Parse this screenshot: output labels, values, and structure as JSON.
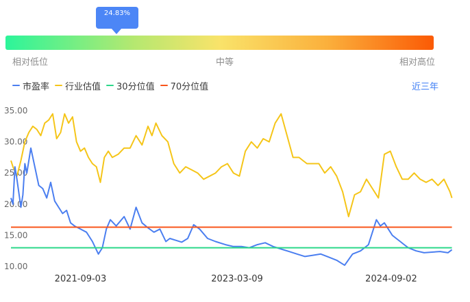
{
  "percentile": {
    "label": "24.83%",
    "value": 24.83,
    "range_labels": {
      "low": "相对低位",
      "mid": "中等",
      "high": "相对高位"
    }
  },
  "legend": [
    {
      "name": "市盈率",
      "color": "#4a7ef0"
    },
    {
      "name": "行业估值",
      "color": "#f5c518"
    },
    {
      "name": "30分位值",
      "color": "#2ad889"
    },
    {
      "name": "70分位值",
      "color": "#f8541a"
    }
  ],
  "period_selector": "近三年",
  "chart_data": {
    "type": "line",
    "ylim": [
      10,
      35
    ],
    "y_ticks": [
      "35.00",
      "30.00",
      "25.00",
      "20.00",
      "15.00",
      "10.00"
    ],
    "x_ticks": [
      "2021-09-03",
      "2023-03-09",
      "2024-09-02"
    ],
    "x_domain": [
      "2021-01-01",
      "2025-04-05"
    ],
    "series": [
      {
        "name": "市盈率",
        "color": "#4a7ef0",
        "x": [
          "2021-01-01",
          "2021-01-08",
          "2021-01-15",
          "2021-01-22",
          "2021-02-05",
          "2021-02-12",
          "2021-02-19",
          "2021-02-26",
          "2021-03-12",
          "2021-03-26",
          "2021-04-09",
          "2021-04-23",
          "2021-05-07",
          "2021-05-21",
          "2021-06-04",
          "2021-06-18",
          "2021-07-02",
          "2021-07-16",
          "2021-07-30",
          "2021-08-13",
          "2021-09-03",
          "2021-09-24",
          "2021-10-15",
          "2021-11-05",
          "2021-11-19",
          "2021-12-03",
          "2021-12-17",
          "2022-01-07",
          "2022-02-04",
          "2022-02-25",
          "2022-03-18",
          "2022-04-08",
          "2022-04-29",
          "2022-05-20",
          "2022-06-10",
          "2022-07-01",
          "2022-07-15",
          "2022-08-05",
          "2022-08-26",
          "2022-09-16",
          "2022-10-07",
          "2022-10-28",
          "2022-11-25",
          "2022-12-23",
          "2023-01-27",
          "2023-02-24",
          "2023-03-24",
          "2023-04-21",
          "2023-05-19",
          "2023-06-16",
          "2023-07-14",
          "2023-08-11",
          "2023-09-08",
          "2023-10-06",
          "2023-11-03",
          "2023-12-01",
          "2023-12-29",
          "2024-01-26",
          "2024-02-23",
          "2024-03-22",
          "2024-04-19",
          "2024-05-17",
          "2024-06-14",
          "2024-07-12",
          "2024-07-26",
          "2024-08-09",
          "2024-08-30",
          "2024-09-06",
          "2024-09-20",
          "2024-10-04",
          "2024-10-18",
          "2024-11-01",
          "2024-11-29",
          "2024-12-27",
          "2025-01-24",
          "2025-02-21",
          "2025-03-21",
          "2025-04-04"
        ],
        "y": [
          21.0,
          20.0,
          26.0,
          24.0,
          19.5,
          21.5,
          26.5,
          25.0,
          29.0,
          26.0,
          23.0,
          22.5,
          21.0,
          23.5,
          20.5,
          19.5,
          18.5,
          19.0,
          17.0,
          16.5,
          16.0,
          15.5,
          14.0,
          12.0,
          13.0,
          16.0,
          17.5,
          16.5,
          18.0,
          16.0,
          19.5,
          17.0,
          16.2,
          15.5,
          16.0,
          14.0,
          14.5,
          14.2,
          13.9,
          14.5,
          16.7,
          16.0,
          14.5,
          14.0,
          13.5,
          13.2,
          13.2,
          13.0,
          13.5,
          13.8,
          13.2,
          12.8,
          12.4,
          12.0,
          11.6,
          11.8,
          12.0,
          11.5,
          11.0,
          10.2,
          12.0,
          12.5,
          13.5,
          17.5,
          16.5,
          17.0,
          15.5,
          15.0,
          14.5,
          14.0,
          13.5,
          13.0,
          12.5,
          12.2,
          12.3,
          12.4,
          12.2,
          12.7
        ]
      },
      {
        "name": "行业估值",
        "color": "#f5c518",
        "x": [
          "2021-01-01",
          "2021-01-08",
          "2021-01-22",
          "2021-02-05",
          "2021-02-19",
          "2021-03-05",
          "2021-03-19",
          "2021-04-02",
          "2021-04-16",
          "2021-04-30",
          "2021-05-14",
          "2021-05-28",
          "2021-06-11",
          "2021-06-25",
          "2021-07-09",
          "2021-07-23",
          "2021-08-06",
          "2021-08-20",
          "2021-09-03",
          "2021-09-17",
          "2021-10-01",
          "2021-10-15",
          "2021-10-29",
          "2021-11-12",
          "2021-11-26",
          "2021-12-10",
          "2021-12-24",
          "2022-01-14",
          "2022-02-04",
          "2022-02-25",
          "2022-03-18",
          "2022-04-08",
          "2022-04-29",
          "2022-05-13",
          "2022-05-27",
          "2022-06-17",
          "2022-07-08",
          "2022-07-29",
          "2022-08-19",
          "2022-09-09",
          "2022-09-30",
          "2022-10-21",
          "2022-11-11",
          "2022-12-02",
          "2022-12-23",
          "2023-01-13",
          "2023-02-03",
          "2023-02-24",
          "2023-03-17",
          "2023-04-07",
          "2023-04-28",
          "2023-05-19",
          "2023-06-09",
          "2023-06-30",
          "2023-07-21",
          "2023-08-11",
          "2023-09-01",
          "2023-09-22",
          "2023-10-13",
          "2023-10-27",
          "2023-11-10",
          "2023-12-01",
          "2023-12-22",
          "2024-01-12",
          "2024-02-02",
          "2024-02-23",
          "2024-03-15",
          "2024-04-05",
          "2024-04-26",
          "2024-05-17",
          "2024-06-07",
          "2024-06-28",
          "2024-07-19",
          "2024-08-09",
          "2024-08-30",
          "2024-09-20",
          "2024-10-11",
          "2024-11-01",
          "2024-11-22",
          "2024-12-13",
          "2025-01-03",
          "2025-01-24",
          "2025-02-14",
          "2025-03-07",
          "2025-03-28",
          "2025-04-04"
        ],
        "y": [
          27.0,
          26.0,
          24.5,
          27.0,
          30.0,
          31.5,
          32.5,
          32.0,
          31.0,
          33.0,
          33.5,
          34.5,
          30.5,
          31.5,
          34.5,
          33.0,
          34.0,
          30.0,
          28.5,
          29.0,
          27.5,
          26.5,
          26.0,
          23.5,
          27.5,
          28.5,
          27.5,
          28.0,
          29.0,
          29.0,
          31.0,
          29.5,
          32.5,
          31.0,
          33.0,
          31.0,
          30.0,
          26.5,
          25.0,
          26.0,
          25.5,
          25.0,
          24.0,
          24.5,
          25.0,
          26.0,
          26.5,
          25.0,
          24.5,
          28.5,
          30.0,
          29.0,
          30.5,
          30.0,
          33.0,
          34.5,
          31.0,
          27.5,
          27.5,
          27.0,
          26.5,
          26.5,
          26.5,
          25.0,
          26.0,
          24.5,
          22.0,
          18.0,
          21.5,
          22.0,
          24.0,
          22.5,
          21.0,
          28.0,
          28.5,
          26.0,
          24.0,
          24.0,
          25.0,
          24.0,
          23.5,
          24.0,
          23.0,
          24.0,
          22.0,
          21.0
        ]
      },
      {
        "name": "30分位值",
        "color": "#2ad889",
        "x": [
          "2021-01-01",
          "2025-04-04"
        ],
        "y": [
          13.0,
          13.0
        ]
      },
      {
        "name": "70分位值",
        "color": "#f8541a",
        "x": [
          "2021-01-01",
          "2025-04-04"
        ],
        "y": [
          16.3,
          16.3
        ]
      }
    ]
  }
}
